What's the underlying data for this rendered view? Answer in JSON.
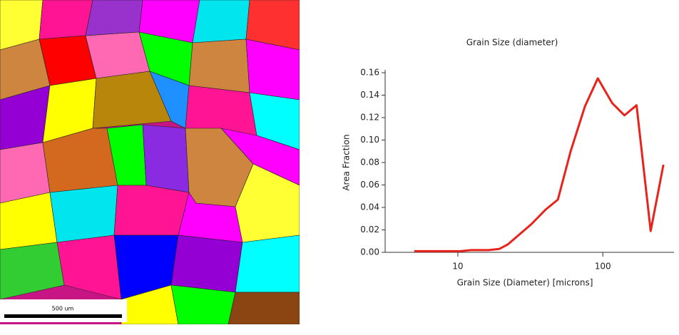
{
  "scale_bar": {
    "label": "500 um"
  },
  "chart_data": {
    "type": "line",
    "title": "Grain Size (diameter)",
    "x_label": "Grain Size (Diameter) [microns]",
    "y_label": "Area Fraction",
    "x_scale": "log",
    "grid": false,
    "xlim": [
      3.15,
      310
    ],
    "xticks": [
      10,
      100
    ],
    "ylim": [
      0,
      0.16
    ],
    "yticks": [
      {
        "value": 0,
        "label": "0.00"
      },
      {
        "value": 0.02,
        "label": "0.02"
      },
      {
        "value": 0.04,
        "label": "0.04"
      },
      {
        "value": 0.06,
        "label": "0.06"
      },
      {
        "value": 0.08,
        "label": "0.08"
      },
      {
        "value": 0.1,
        "label": "0.10"
      },
      {
        "value": 0.12,
        "label": "0.12"
      },
      {
        "value": 0.14,
        "label": "0.14"
      },
      {
        "value": 0.16,
        "label": "0.16"
      }
    ],
    "x": [
      5.0,
      6.9,
      10.3,
      12.3,
      16.3,
      19.3,
      22.1,
      32.1,
      40.3,
      49,
      60,
      75.3,
      92.4,
      116,
      141,
      171,
      214,
      262
    ],
    "series": [
      {
        "name": "Area Fraction",
        "color": "#e8231b",
        "values": [
          0.001,
          0.001,
          0.001,
          0.002,
          0.002,
          0.003,
          0.007,
          0.025,
          0.038,
          0.047,
          0.09,
          0.13,
          0.155,
          0.133,
          0.122,
          0.131,
          0.019,
          0.078
        ]
      }
    ]
  }
}
